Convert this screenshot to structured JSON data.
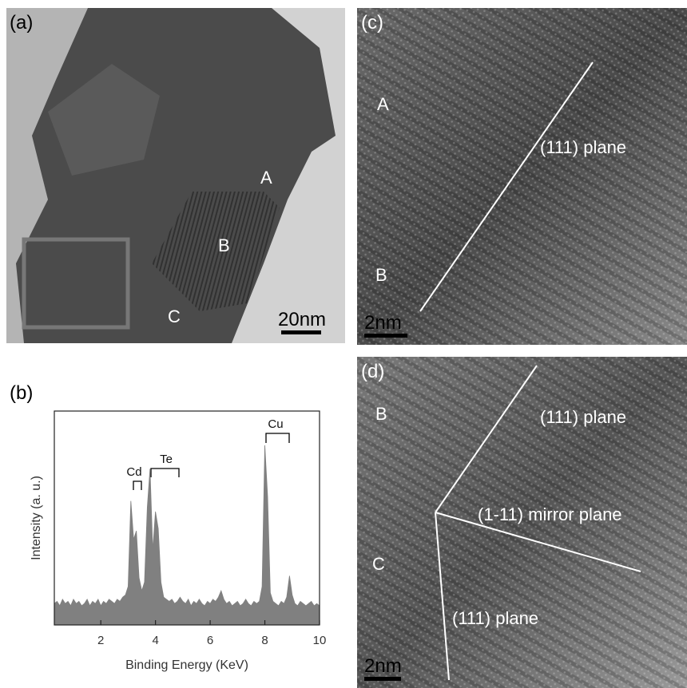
{
  "panels": {
    "a": {
      "label": "(a)",
      "annotations": [
        "A",
        "B",
        "C"
      ],
      "scale_bar": "20nm"
    },
    "b": {
      "label": "(b)"
    },
    "c": {
      "label": "(c)",
      "annotations": [
        "A",
        "B",
        "(111) plane"
      ],
      "scale_bar": "2nm"
    },
    "d": {
      "label": "(d)",
      "annotations": [
        "B",
        "(111) plane",
        "(1-11) mirror plane",
        "C",
        "(111) plane"
      ],
      "scale_bar": "2nm"
    }
  },
  "chart_data": {
    "type": "area",
    "x_label": "Binding Energy (KeV)",
    "y_label": "Intensity (a. u.)",
    "peak_labels": [
      "Cd",
      "Te",
      "Cu"
    ],
    "color": "#808080",
    "xlim": [
      0.3,
      10
    ],
    "xticks": [
      2,
      4,
      6,
      8,
      10
    ],
    "ylim": [
      0,
      100
    ],
    "x": [
      0.3,
      0.4,
      0.5,
      0.6,
      0.7,
      0.8,
      0.9,
      1.0,
      1.1,
      1.2,
      1.3,
      1.4,
      1.5,
      1.6,
      1.7,
      1.8,
      1.9,
      2.0,
      2.1,
      2.2,
      2.3,
      2.4,
      2.5,
      2.6,
      2.7,
      2.8,
      2.9,
      3.0,
      3.1,
      3.2,
      3.3,
      3.4,
      3.5,
      3.6,
      3.7,
      3.8,
      3.9,
      4.0,
      4.1,
      4.2,
      4.3,
      4.4,
      4.5,
      4.6,
      4.7,
      4.8,
      4.9,
      5.0,
      5.1,
      5.2,
      5.3,
      5.4,
      5.5,
      5.6,
      5.7,
      5.8,
      5.9,
      6.0,
      6.1,
      6.2,
      6.3,
      6.4,
      6.5,
      6.6,
      6.7,
      6.8,
      6.9,
      7.0,
      7.1,
      7.2,
      7.3,
      7.4,
      7.5,
      7.6,
      7.7,
      7.8,
      7.9,
      8.0,
      8.1,
      8.2,
      8.3,
      8.4,
      8.5,
      8.6,
      8.7,
      8.8,
      8.9,
      9.0,
      9.1,
      9.2,
      9.3,
      9.4,
      9.5,
      9.6,
      9.7,
      9.8,
      9.9,
      10.0
    ],
    "values": [
      10,
      11,
      9,
      12,
      10,
      11,
      9,
      12,
      10,
      11,
      9,
      10,
      12,
      9,
      11,
      10,
      12,
      9,
      11,
      10,
      12,
      11,
      10,
      12,
      11,
      13,
      14,
      18,
      58,
      40,
      44,
      22,
      16,
      20,
      55,
      73,
      35,
      53,
      45,
      20,
      13,
      12,
      11,
      12,
      10,
      11,
      13,
      11,
      10,
      12,
      9,
      11,
      10,
      12,
      10,
      9,
      11,
      10,
      12,
      11,
      13,
      16,
      12,
      10,
      11,
      9,
      10,
      11,
      9,
      10,
      12,
      10,
      9,
      11,
      10,
      11,
      18,
      84,
      60,
      15,
      11,
      10,
      9,
      11,
      10,
      13,
      23,
      14,
      10,
      9,
      11,
      10,
      9,
      10,
      11,
      9,
      10,
      9
    ]
  }
}
